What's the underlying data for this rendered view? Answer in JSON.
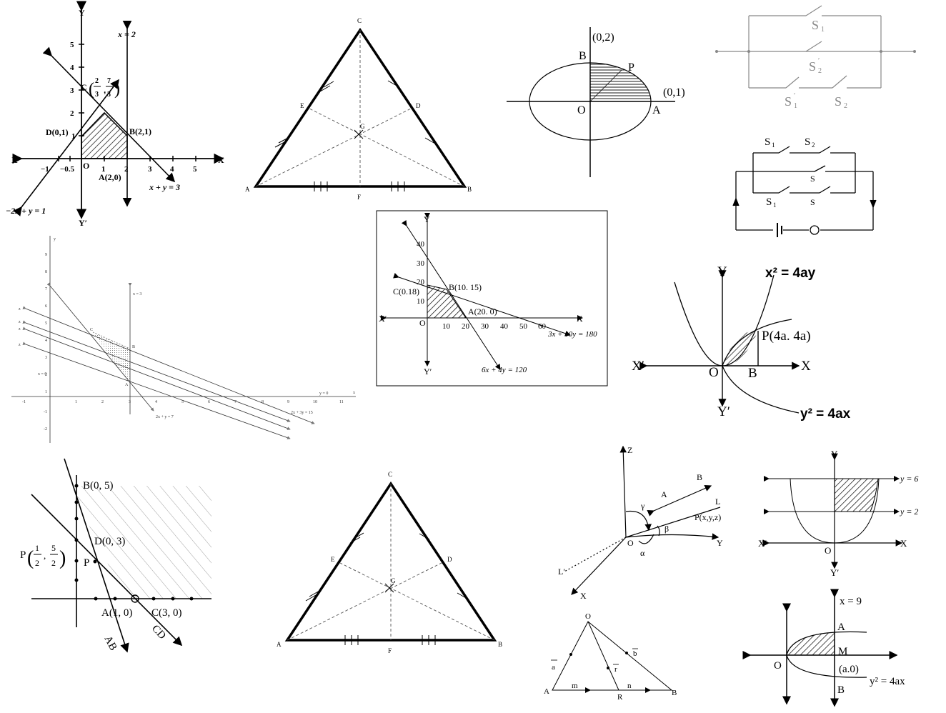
{
  "p1": {
    "x_axis": "X",
    "x_axis_neg": "X′",
    "y_axis": "Y",
    "y_axis_neg": "Y′",
    "line_x2": "x = 2",
    "line_sum": "x + y = 3",
    "line_neg": "−2x + y = 1",
    "pt_c": "C",
    "pt_c_x": "2",
    "pt_c_y": "7",
    "pt_c_den": "3",
    "pt_d": "D(0,1)",
    "pt_b": "B(2,1)",
    "pt_a": "A(2,0)",
    "origin": "O",
    "xticks": [
      "−1",
      "−0.5",
      "1",
      "2",
      "3",
      "4",
      "5"
    ],
    "yticks": [
      "1",
      "2",
      "3",
      "4",
      "5"
    ]
  },
  "p2": {
    "A": "A",
    "B": "B",
    "C": "C",
    "D": "D",
    "E": "E",
    "F": "F",
    "G": "G"
  },
  "p3": {
    "B": "B",
    "P": "P",
    "O": "O",
    "A": "A",
    "top": "(0,2)",
    "right": "(0,1)"
  },
  "p4": {
    "s1": "S",
    "s2": "S",
    "s1p": "S",
    "s2p": "S",
    "sub1": "1",
    "sub2": "2",
    "prime": "′"
  },
  "p5": {
    "s1": "S",
    "s2": "S",
    "s1p": "S",
    "s3": "S",
    "s2p": "S",
    "sub1": "1",
    "sub2": "2",
    "prime": "′"
  },
  "p6": {
    "x_axis": "x",
    "y_axis": "y",
    "line_x3": "x = 3",
    "line_x0": "x = 0",
    "line_y0": "y = 0",
    "line_a": "2x + 3y = 15",
    "line_b": "2x + y = 7",
    "pt_c": "C",
    "pt_b": "B",
    "pt_a": "A",
    "z1": "z",
    "z2": "z",
    "z3": "z",
    "z4": "z",
    "xticks": [
      "-1",
      "1",
      "2",
      "3",
      "4",
      "5",
      "6",
      "7",
      "8",
      "9",
      "10",
      "11"
    ],
    "yticks": [
      "9",
      "8",
      "7",
      "6",
      "5",
      "4",
      "3",
      "2",
      "1",
      "-1",
      "-2"
    ]
  },
  "p7": {
    "y_axis": "Y",
    "y_axis_neg": "Y′",
    "x_axis": "X",
    "x_axis_neg": "X′",
    "origin": "O",
    "pt_c": "C(0.18)",
    "pt_b": "B(10. 15)",
    "pt_a": "A(20. 0)",
    "line1": "3x + 10y = 180",
    "line2": "6x + 4y = 120",
    "xticks": [
      "10",
      "20",
      "30",
      "40",
      "50",
      "60"
    ],
    "yticks": [
      "10",
      "20",
      "30",
      "40"
    ]
  },
  "p8": {
    "y_axis": "Y",
    "y_axis_neg": "Y′",
    "x_axis": "X",
    "x_axis_neg": "X′",
    "origin": "O",
    "eq1": "x² = 4ay",
    "eq2": "y² = 4ax",
    "pt_p": "P(4a. 4a)",
    "pt_b": "B"
  },
  "p9": {
    "b": "B(0, 5)",
    "d": "D(0, 3)",
    "p_left": "P",
    "p_x": "1",
    "p_y": "5",
    "p_den": "2",
    "p_mark": "P",
    "a": "A(1, 0)",
    "c": "C(3, 0)",
    "ab": "AB",
    "cd": "CD"
  },
  "p10": {
    "A": "A",
    "B": "B",
    "C": "C",
    "D": "D",
    "E": "E",
    "F": "F",
    "G": "G"
  },
  "p11": {
    "z": "Z",
    "y": "Y",
    "x": "X",
    "o": "O",
    "l": "L",
    "lp": "L′",
    "a": "A",
    "b": "B",
    "p": "P(x,y,z)",
    "alpha": "α",
    "beta": "β",
    "gamma": "γ"
  },
  "p12": {
    "y_axis": "Y",
    "y_axis_neg": "Y′",
    "x_axis": "X",
    "x_axis_neg": "X′",
    "origin": "O",
    "y6": "y = 6",
    "y2": "y = 2"
  },
  "p13": {
    "o": "O",
    "a": "A",
    "b": "B",
    "r": "R",
    "m": "m",
    "n": "n",
    "va": "a",
    "vb": "b",
    "vr": "r"
  },
  "p14": {
    "x9": "x = 9",
    "a": "A",
    "m": "M",
    "o": "O",
    "b": "B",
    "pt": "(a.0)",
    "eq": "y² = 4ax"
  }
}
